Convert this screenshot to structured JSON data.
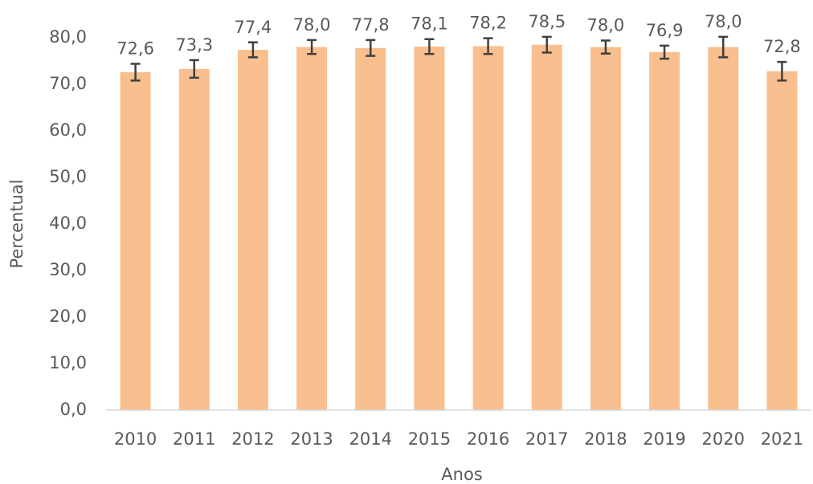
{
  "chart_data": {
    "type": "bar",
    "x_label": "Anos",
    "y_label": "Percentual",
    "categories": [
      "2010",
      "2011",
      "2012",
      "2013",
      "2014",
      "2015",
      "2016",
      "2017",
      "2018",
      "2019",
      "2020",
      "2021"
    ],
    "values": [
      72.6,
      73.3,
      77.4,
      78.0,
      77.8,
      78.1,
      78.2,
      78.5,
      78.0,
      76.9,
      78.0,
      72.8
    ],
    "value_labels": [
      "72,6",
      "73,3",
      "77,4",
      "78,0",
      "77,8",
      "78,1",
      "78,2",
      "78,5",
      "78,0",
      "76,9",
      "78,0",
      "72,8"
    ],
    "errors": [
      1.8,
      1.9,
      1.6,
      1.5,
      1.7,
      1.6,
      1.7,
      1.7,
      1.4,
      1.4,
      2.2,
      2.0
    ],
    "color": "#f9bf8f",
    "error_color": "#404040",
    "ylim": [
      0,
      80
    ],
    "yticks": [
      {
        "value": 0,
        "label": "0,0"
      },
      {
        "value": 10,
        "label": "10,0"
      },
      {
        "value": 20,
        "label": "20,0"
      },
      {
        "value": 30,
        "label": "30,0"
      },
      {
        "value": 40,
        "label": "40,0"
      },
      {
        "value": 50,
        "label": "50,0"
      },
      {
        "value": 60,
        "label": "60,0"
      },
      {
        "value": 70,
        "label": "70,0"
      },
      {
        "value": 80,
        "label": "80,0"
      }
    ],
    "grid": false
  }
}
